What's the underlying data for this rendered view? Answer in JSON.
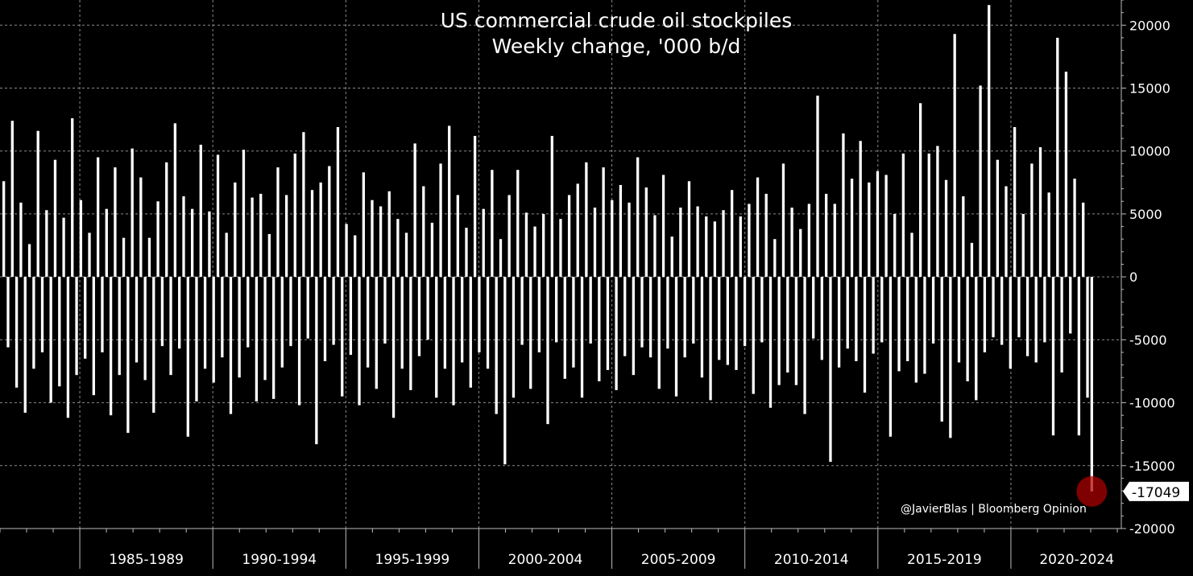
{
  "colors": {
    "background": "#000000",
    "bars": "#ffffff",
    "grid": "#8a8a8a",
    "axis": "#bcbcbc",
    "marker": "#b00000"
  },
  "credit": "@JavierBlas | Bloomberg Opinion",
  "chart_data": {
    "type": "bar",
    "title": "US commercial crude oil stockpiles",
    "subtitle": "Weekly change, '000 b/d",
    "xlabel": "",
    "ylabel": "",
    "grid": true,
    "y_axis_side": "right",
    "x_range": [
      1982.0,
      2024.15
    ],
    "ylim": [
      -20000,
      22000
    ],
    "y_ticks": [
      20000,
      15000,
      10000,
      5000,
      0,
      -5000,
      -10000,
      -15000,
      -20000
    ],
    "y_tick_labels": [
      "20000",
      "15000",
      "10000",
      "5000",
      "0",
      "-5000",
      "-10000",
      "-15000",
      "-20000"
    ],
    "x_ticks": [
      "1985-1989",
      "1990-1994",
      "1995-1999",
      "2000-2004",
      "2005-2009",
      "2010-2014",
      "2015-2019",
      "2020-2024"
    ],
    "x_tick_starts": [
      1985,
      1990,
      1995,
      2000,
      2005,
      2010,
      2015,
      2020
    ],
    "series": [
      {
        "values": [
          7600,
          -5600,
          12400,
          -8800,
          5900,
          -10800,
          2600,
          -7300,
          11600,
          -6000,
          5300,
          -10000,
          9300,
          -8700,
          4700,
          -11200,
          12600,
          -7800,
          6100,
          -6500,
          3500,
          -9400,
          9500,
          -6000,
          5400,
          -11000,
          8700,
          -7800,
          3100,
          -12400,
          10200,
          -6800,
          7900,
          -8200,
          3100,
          -10800,
          6000,
          -5500,
          9100,
          -7800,
          12200,
          -5700,
          6400,
          -12700,
          5400,
          -9900,
          10500,
          -7300,
          5200,
          -8400,
          9700,
          -6400,
          3500,
          -10900,
          7500,
          -8000,
          10100,
          -5600,
          6300,
          -9900,
          6600,
          -8200,
          3400,
          -9700,
          8700,
          -7200,
          6500,
          -5500,
          9800,
          -10200,
          11500,
          -4900,
          6900,
          -13300,
          7500,
          -6700,
          8800,
          -5400,
          11900,
          -9500,
          4200,
          -6200,
          3300,
          -10200,
          8300,
          -7200,
          6100,
          -8900,
          5600,
          -5300,
          6800,
          -11200,
          4600,
          -7300,
          3500,
          -9000,
          10600,
          -6300,
          7200,
          -5000,
          4300,
          -9600,
          9000,
          -7300,
          12000,
          -10200,
          6500,
          -6800,
          3900,
          -8800,
          11200,
          -6000,
          5400,
          -7300,
          8500,
          -10900,
          3000,
          -14900,
          6500,
          -9600,
          8500,
          -5400,
          5100,
          -8900,
          4000,
          -6000,
          5000,
          -11700,
          11200,
          -5200,
          4600,
          -8100,
          6500,
          -7200,
          7400,
          -9600,
          9100,
          -5300,
          5500,
          -8300,
          8700,
          -7400,
          6100,
          -9000,
          7300,
          -6300,
          5900,
          -7800,
          9500,
          -5600,
          7100,
          -6400,
          4900,
          -8900,
          8100,
          -5700,
          3200,
          -9500,
          5500,
          -6400,
          7600,
          -5300,
          5600,
          -8000,
          4800,
          -9800,
          4400,
          -6600,
          5300,
          -7000,
          6900,
          -7400,
          4800,
          -5500,
          5800,
          -9300,
          7900,
          -5200,
          6600,
          -10400,
          3000,
          -8600,
          9000,
          -7600,
          5500,
          -8600,
          3800,
          -10900,
          5800,
          -4900,
          14400,
          -6600,
          6600,
          -14700,
          5800,
          -7200,
          11400,
          -5700,
          7800,
          -6700,
          10800,
          -9200,
          7500,
          -6100,
          8400,
          -5200,
          8100,
          -12700,
          5000,
          -7500,
          9800,
          -6700,
          3500,
          -8400,
          13800,
          -7700,
          9800,
          -5300,
          10400,
          -11500,
          7700,
          -12800,
          19300,
          -6800,
          6400,
          -8300,
          2700,
          -9800,
          15200,
          -6000,
          21600,
          -4800,
          9300,
          -5400,
          7200,
          -7300,
          11900,
          -4800,
          5000,
          -6300,
          9000,
          -6800,
          10300,
          -5200,
          6700,
          -12600,
          19000,
          -7600,
          16300,
          -4500,
          7800,
          -12600,
          5900,
          -9600,
          -17049
        ]
      }
    ],
    "annotations": [
      {
        "text": "-17049",
        "value": -17049,
        "date": "2024-02"
      }
    ]
  }
}
